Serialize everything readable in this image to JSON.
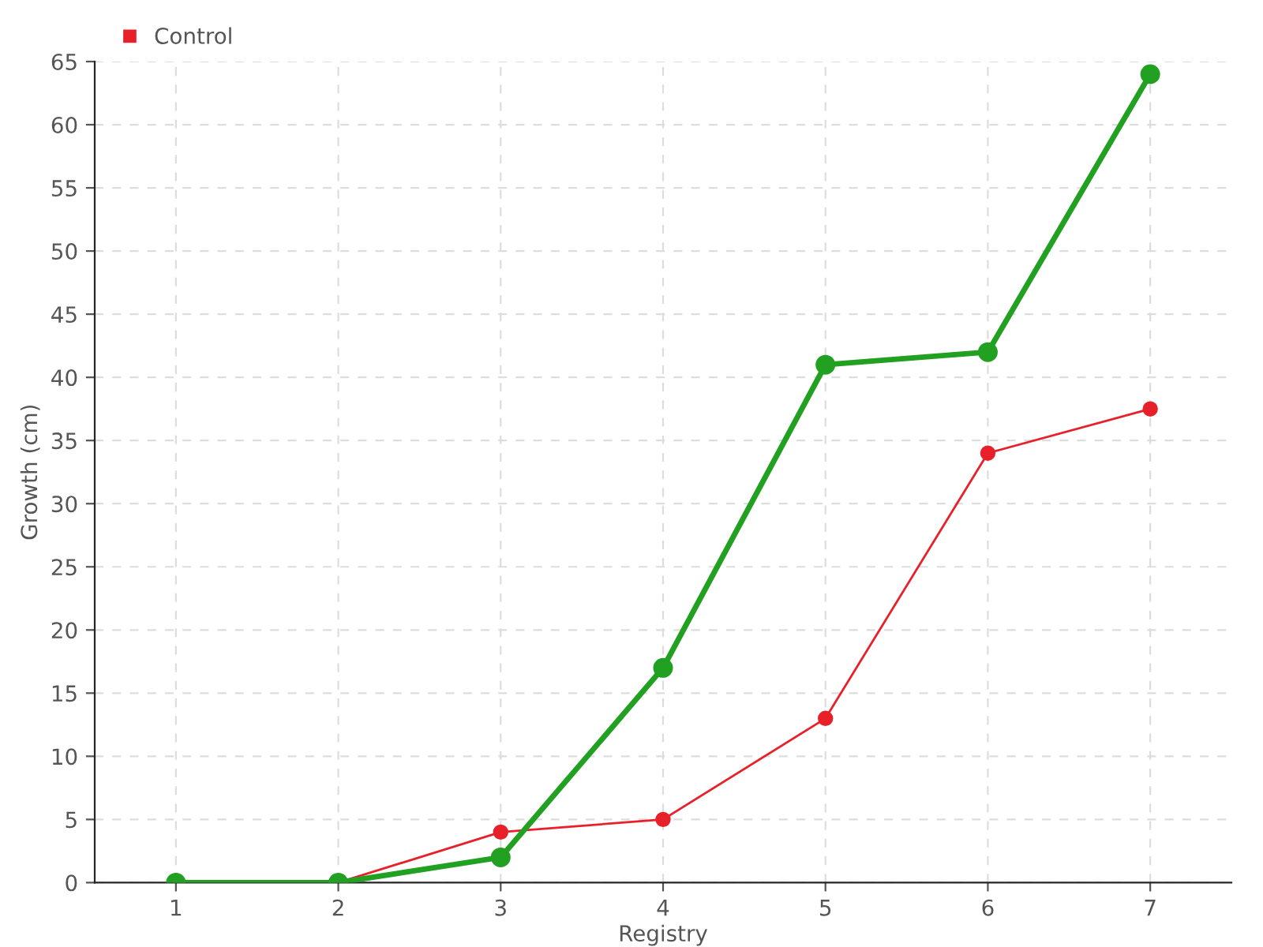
{
  "chart_data": {
    "type": "line",
    "xlabel": "Registry",
    "ylabel": "Growth (cm)",
    "categories": [
      "1",
      "2",
      "3",
      "4",
      "5",
      "6",
      "7"
    ],
    "series": [
      {
        "color": "#22a022",
        "values": [
          0,
          0,
          2,
          17,
          41,
          42,
          64
        ]
      },
      {
        "name": "Control",
        "color": "#e8202a",
        "values": [
          0,
          0,
          4,
          5,
          13,
          34,
          37.5
        ]
      }
    ],
    "ylim": [
      0,
      65
    ],
    "yticks": [
      0,
      5,
      10,
      15,
      20,
      25,
      30,
      35,
      40,
      45,
      50,
      55,
      60,
      65
    ],
    "grid": true,
    "legend": "top left",
    "marker": "circle",
    "line_style": "solid"
  }
}
